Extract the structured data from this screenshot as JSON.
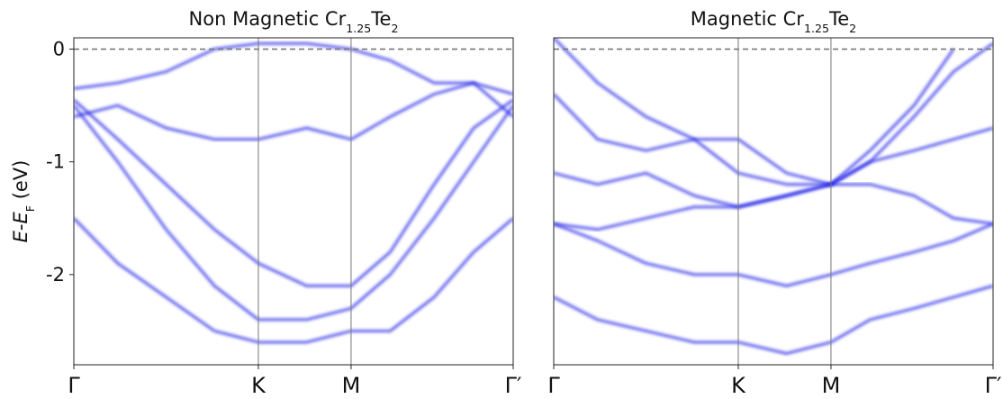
{
  "chart_data": [
    {
      "type": "line",
      "title_parts": [
        {
          "text": "Non Magnetic Cr"
        },
        {
          "text": "1.25",
          "sub": true
        },
        {
          "text": "Te"
        },
        {
          "text": "2",
          "sub": true
        }
      ],
      "y_label_parts": [
        {
          "text": "E",
          "italic": true
        },
        {
          "text": "-"
        },
        {
          "text": "E",
          "italic": true
        },
        {
          "text": "F",
          "sub": true
        },
        {
          "text": " (eV)"
        }
      ],
      "x": [
        0,
        0.1,
        0.21,
        0.32,
        0.42,
        0.53,
        0.631,
        0.72,
        0.82,
        0.91,
        1
      ],
      "xlim": [
        0,
        1
      ],
      "xticks": [
        {
          "value": 0,
          "label": "Γ"
        },
        {
          "value": 0.42,
          "label": "K"
        },
        {
          "value": 0.631,
          "label": "M"
        },
        {
          "value": 1,
          "label": "Γ′"
        }
      ],
      "ylim": [
        -2.8,
        0.1
      ],
      "yticks": [
        0,
        -1,
        -2
      ],
      "fermi_level": 0,
      "vlines": [
        0.42,
        0.631
      ],
      "series": [
        {
          "color": "#2a2ae8",
          "values": [
            -0.35,
            -0.3,
            -0.2,
            0.0,
            0.05,
            0.05,
            0.0,
            -0.1,
            -0.3,
            -0.3,
            -0.4
          ]
        },
        {
          "color": "#2a2ae8",
          "values": [
            -0.45,
            -0.8,
            -1.2,
            -1.6,
            -1.9,
            -2.1,
            -2.1,
            -1.8,
            -1.2,
            -0.7,
            -0.45
          ]
        },
        {
          "color": "#2a2ae8",
          "values": [
            -0.5,
            -1.0,
            -1.6,
            -2.1,
            -2.4,
            -2.4,
            -2.3,
            -2.0,
            -1.5,
            -1.0,
            -0.5
          ]
        },
        {
          "color": "#2a2ae8",
          "values": [
            -1.5,
            -1.9,
            -2.2,
            -2.5,
            -2.6,
            -2.6,
            -2.5,
            -2.5,
            -2.2,
            -1.8,
            -1.5
          ]
        },
        {
          "color": "#2a2ae8",
          "values": [
            -0.6,
            -0.5,
            -0.7,
            -0.8,
            -0.8,
            -0.7,
            -0.8,
            -0.6,
            -0.4,
            -0.3,
            -0.6
          ]
        }
      ]
    },
    {
      "type": "line",
      "title_parts": [
        {
          "text": "Magnetic Cr"
        },
        {
          "text": "1.25",
          "sub": true
        },
        {
          "text": "Te"
        },
        {
          "text": "2",
          "sub": true
        }
      ],
      "x": [
        0,
        0.1,
        0.21,
        0.32,
        0.42,
        0.53,
        0.631,
        0.72,
        0.82,
        0.91,
        1
      ],
      "xlim": [
        0,
        1
      ],
      "xticks": [
        {
          "value": 0,
          "label": "Γ"
        },
        {
          "value": 0.42,
          "label": "K"
        },
        {
          "value": 0.631,
          "label": "M"
        },
        {
          "value": 1,
          "label": "Γ′"
        }
      ],
      "ylim": [
        -2.8,
        0.1
      ],
      "fermi_level": 0,
      "vlines": [
        0.42,
        0.631
      ],
      "series": [
        {
          "color": "#2a2ae8",
          "values": [
            -0.4,
            -0.8,
            -0.9,
            -0.8,
            -0.8,
            -1.1,
            -1.2,
            -1.0,
            -0.6,
            -0.2,
            0.05
          ]
        },
        {
          "color": "#2a2ae8",
          "values": [
            -1.55,
            -1.6,
            -1.5,
            -1.4,
            -1.4,
            -1.3,
            -1.2,
            -1.2,
            -1.3,
            -1.5,
            -1.55
          ]
        },
        {
          "color": "#2a2ae8",
          "values": [
            -1.55,
            -1.7,
            -1.9,
            -2.0,
            -2.0,
            -2.1,
            -2.0,
            -1.9,
            -1.8,
            -1.7,
            -1.55
          ]
        },
        {
          "color": "#2a2ae8",
          "values": [
            -1.1,
            -1.2,
            -1.1,
            -1.3,
            -1.4,
            -1.3,
            -1.2,
            -1.0,
            -0.9,
            -0.8,
            -0.7
          ]
        },
        {
          "color": "#2a2ae8",
          "values": [
            -2.2,
            -2.4,
            -2.5,
            -2.6,
            -2.6,
            -2.7,
            -2.6,
            -2.4,
            -2.3,
            -2.2,
            -2.1
          ]
        },
        {
          "color": "#2a2ae8",
          "values": [
            0.1,
            -0.3,
            -0.6,
            -0.8,
            -1.1,
            -1.2,
            -1.2,
            -0.9,
            -0.5,
            0.0,
            null
          ]
        }
      ]
    }
  ]
}
